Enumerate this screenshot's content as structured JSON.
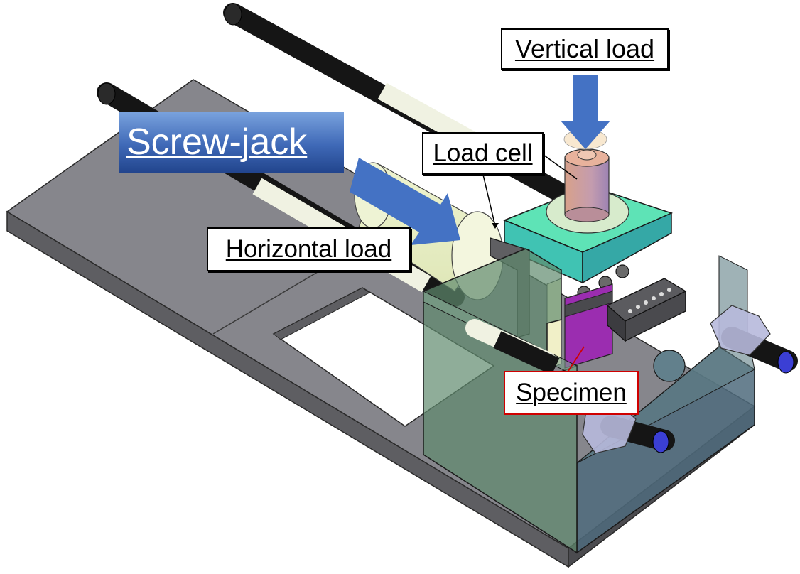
{
  "labels": {
    "vertical_load": "Vertical load",
    "load_cell": "Load cell",
    "screw_jack": "Screw-jack",
    "horizontal_load": "Horizontal load",
    "specimen": "Specimen"
  },
  "colors": {
    "base_plate": "#7f7f86",
    "frame_plate": "#4f6f7f",
    "top_block": "#4fe0b0",
    "load_cell_body": "#c89a8a",
    "specimen": "#9b2db0",
    "arrow": "#4472c4",
    "rod_dark": "#1a1a1a",
    "rod_light": "#f0f2e0",
    "specimen_label_border": "#d00000"
  }
}
